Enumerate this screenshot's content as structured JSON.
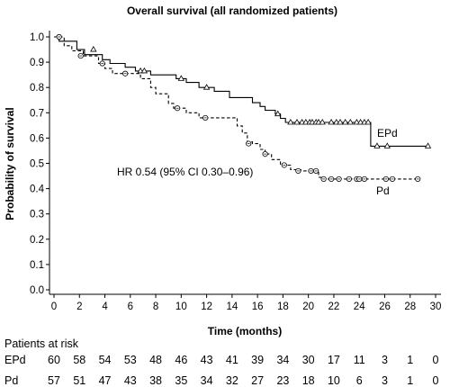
{
  "chart_data": {
    "type": "line",
    "title": "Overall survival (all randomized patients)",
    "xlabel": "Time (months)",
    "ylabel": "Probability of survival",
    "xlim": [
      0,
      30
    ],
    "ylim": [
      0,
      1.0
    ],
    "xticks": [
      "0",
      "2",
      "4",
      "6",
      "8",
      "10",
      "12",
      "14",
      "16",
      "18",
      "20",
      "22",
      "24",
      "26",
      "28",
      "30"
    ],
    "yticks": [
      "0.0",
      "0.1",
      "0.2",
      "0.3",
      "0.4",
      "0.5",
      "0.6",
      "0.7",
      "0.8",
      "0.9",
      "1.0"
    ],
    "grid": false,
    "annotation": "HR 0.54 (95% CI 0.30–0.96)",
    "series": [
      {
        "name": "EPd",
        "line_style": "solid",
        "censor_marker": "triangle",
        "steps": [
          [
            0,
            1.0
          ],
          [
            0.4,
            0.983
          ],
          [
            1.8,
            0.95
          ],
          [
            2.4,
            0.93
          ],
          [
            3.8,
            0.91
          ],
          [
            4.4,
            0.895
          ],
          [
            5.6,
            0.88
          ],
          [
            6.4,
            0.865
          ],
          [
            7.6,
            0.85
          ],
          [
            9.6,
            0.835
          ],
          [
            10.4,
            0.82
          ],
          [
            11.4,
            0.8
          ],
          [
            12.6,
            0.785
          ],
          [
            13.8,
            0.76
          ],
          [
            15.6,
            0.74
          ],
          [
            16.2,
            0.725
          ],
          [
            16.6,
            0.71
          ],
          [
            17.4,
            0.695
          ],
          [
            17.8,
            0.678
          ],
          [
            18.2,
            0.662
          ],
          [
            24.9,
            0.568
          ],
          [
            29.4,
            0.568
          ]
        ],
        "censored": [
          [
            3.1,
            0.95
          ],
          [
            6.8,
            0.865
          ],
          [
            7.1,
            0.865
          ],
          [
            10.0,
            0.835
          ],
          [
            12.0,
            0.8
          ],
          [
            17.6,
            0.695
          ],
          [
            18.6,
            0.662
          ],
          [
            19.1,
            0.662
          ],
          [
            19.5,
            0.662
          ],
          [
            19.8,
            0.662
          ],
          [
            20.1,
            0.662
          ],
          [
            20.3,
            0.662
          ],
          [
            20.6,
            0.662
          ],
          [
            20.8,
            0.662
          ],
          [
            21.1,
            0.662
          ],
          [
            21.8,
            0.662
          ],
          [
            22.2,
            0.662
          ],
          [
            22.5,
            0.662
          ],
          [
            22.9,
            0.662
          ],
          [
            23.3,
            0.662
          ],
          [
            23.8,
            0.662
          ],
          [
            24.1,
            0.662
          ],
          [
            24.4,
            0.662
          ],
          [
            24.7,
            0.662
          ],
          [
            25.4,
            0.568
          ],
          [
            26.2,
            0.568
          ],
          [
            29.4,
            0.568
          ]
        ]
      },
      {
        "name": "Pd",
        "line_style": "dashed",
        "censor_marker": "circle",
        "steps": [
          [
            0,
            1.0
          ],
          [
            0.8,
            0.965
          ],
          [
            1.4,
            0.945
          ],
          [
            2.3,
            0.925
          ],
          [
            3.5,
            0.895
          ],
          [
            4.0,
            0.875
          ],
          [
            4.6,
            0.855
          ],
          [
            6.8,
            0.835
          ],
          [
            7.6,
            0.8
          ],
          [
            8.0,
            0.775
          ],
          [
            9.0,
            0.737
          ],
          [
            9.4,
            0.718
          ],
          [
            10.4,
            0.7
          ],
          [
            11.4,
            0.68
          ],
          [
            14.4,
            0.648
          ],
          [
            14.8,
            0.62
          ],
          [
            15.2,
            0.585
          ],
          [
            15.6,
            0.578
          ],
          [
            16.2,
            0.555
          ],
          [
            16.6,
            0.537
          ],
          [
            17.1,
            0.515
          ],
          [
            17.8,
            0.493
          ],
          [
            18.6,
            0.475
          ],
          [
            19.4,
            0.47
          ],
          [
            20.8,
            0.445
          ],
          [
            21.0,
            0.438
          ],
          [
            28.6,
            0.438
          ]
        ],
        "censored": [
          [
            0.4,
            1.0
          ],
          [
            2.1,
            0.925
          ],
          [
            3.8,
            0.895
          ],
          [
            5.6,
            0.855
          ],
          [
            9.7,
            0.718
          ],
          [
            11.9,
            0.68
          ],
          [
            15.3,
            0.578
          ],
          [
            16.6,
            0.537
          ],
          [
            18.1,
            0.493
          ],
          [
            19.2,
            0.47
          ],
          [
            20.2,
            0.47
          ],
          [
            20.6,
            0.47
          ],
          [
            21.2,
            0.438
          ],
          [
            21.8,
            0.438
          ],
          [
            22.4,
            0.438
          ],
          [
            23.2,
            0.438
          ],
          [
            23.8,
            0.438
          ],
          [
            24.0,
            0.438
          ],
          [
            24.4,
            0.438
          ],
          [
            26.1,
            0.438
          ],
          [
            26.6,
            0.438
          ],
          [
            28.6,
            0.438
          ]
        ]
      }
    ],
    "risk_table": {
      "title": "Patients at risk",
      "times": [
        0,
        2,
        4,
        6,
        8,
        10,
        12,
        14,
        16,
        18,
        20,
        22,
        24,
        26,
        28,
        30
      ],
      "rows": [
        {
          "name": "EPd",
          "values": [
            "60",
            "58",
            "54",
            "53",
            "48",
            "46",
            "43",
            "41",
            "39",
            "34",
            "30",
            "17",
            "11",
            "3",
            "1",
            "0"
          ]
        },
        {
          "name": "Pd",
          "values": [
            "57",
            "51",
            "47",
            "43",
            "38",
            "35",
            "34",
            "32",
            "27",
            "23",
            "18",
            "10",
            "6",
            "3",
            "1",
            "0"
          ]
        }
      ]
    }
  }
}
